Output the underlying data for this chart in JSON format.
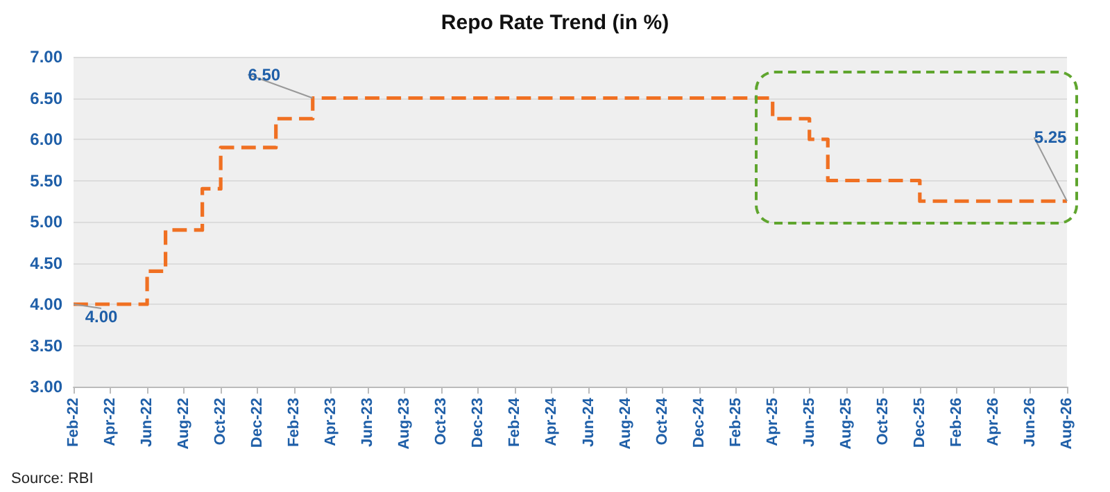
{
  "chart_data": {
    "type": "step",
    "title": "Repo Rate Trend (in %)",
    "categories": [
      "Feb-22",
      null,
      "Apr-22",
      null,
      "Jun-22",
      null,
      "Aug-22",
      null,
      "Oct-22",
      null,
      "Dec-22",
      null,
      "Feb-23",
      null,
      "Apr-23",
      null,
      "Jun-23",
      null,
      "Aug-23",
      null,
      "Oct-23",
      null,
      "Dec-23",
      null,
      "Feb-24",
      null,
      "Apr-24",
      null,
      "Jun-24",
      null,
      "Aug-24",
      null,
      "Oct-24",
      null,
      "Dec-24",
      null,
      "Feb-25",
      null,
      "Apr-25",
      null,
      "Jun-25",
      null,
      "Aug-25",
      null,
      "Oct-25",
      null,
      "Dec-25",
      null,
      "Feb-26",
      null,
      "Apr-26",
      null,
      "Jun-26",
      null,
      "Aug-26"
    ],
    "series": [
      {
        "color": "#f07022",
        "values": [
          4.0,
          4.0,
          4.0,
          4.0,
          4.4,
          4.9,
          4.9,
          5.4,
          5.9,
          5.9,
          5.9,
          6.25,
          6.25,
          6.5,
          6.5,
          6.5,
          6.5,
          6.5,
          6.5,
          6.5,
          6.5,
          6.5,
          6.5,
          6.5,
          6.5,
          6.5,
          6.5,
          6.5,
          6.5,
          6.5,
          6.5,
          6.5,
          6.5,
          6.5,
          6.5,
          6.5,
          6.5,
          6.5,
          6.25,
          6.25,
          6.0,
          5.5,
          5.5,
          5.5,
          5.5,
          5.5,
          5.25,
          5.25,
          5.25,
          5.25,
          5.25,
          5.25,
          5.25,
          5.25,
          5.25
        ],
        "value_labels": [
          "4.00",
          null,
          null,
          null,
          null,
          null,
          null,
          null,
          null,
          null,
          null,
          null,
          null,
          "6.50",
          null,
          null,
          null,
          null,
          null,
          null,
          null,
          null,
          null,
          null,
          null,
          null,
          null,
          null,
          null,
          null,
          null,
          null,
          null,
          null,
          null,
          null,
          null,
          null,
          null,
          null,
          null,
          null,
          null,
          null,
          null,
          null,
          null,
          null,
          null,
          null,
          null,
          null,
          null,
          null,
          "5.25"
        ]
      }
    ],
    "ylim": [
      3.0,
      7.0
    ],
    "yticks": [
      {
        "value": 3,
        "label": "3.00"
      },
      {
        "value": 3.5,
        "label": "3.50"
      },
      {
        "value": 4,
        "label": "4.00"
      },
      {
        "value": 4.5,
        "label": "4.50"
      },
      {
        "value": 5,
        "label": "5.00"
      },
      {
        "value": 5.5,
        "label": "5.50"
      },
      {
        "value": 6,
        "label": "6.00"
      },
      {
        "value": 6.5,
        "label": "6.50"
      },
      {
        "value": 7,
        "label": "7.00"
      }
    ],
    "grid": "y",
    "line_style": "dashed",
    "annotations": [
      "Source: RBI"
    ]
  }
}
